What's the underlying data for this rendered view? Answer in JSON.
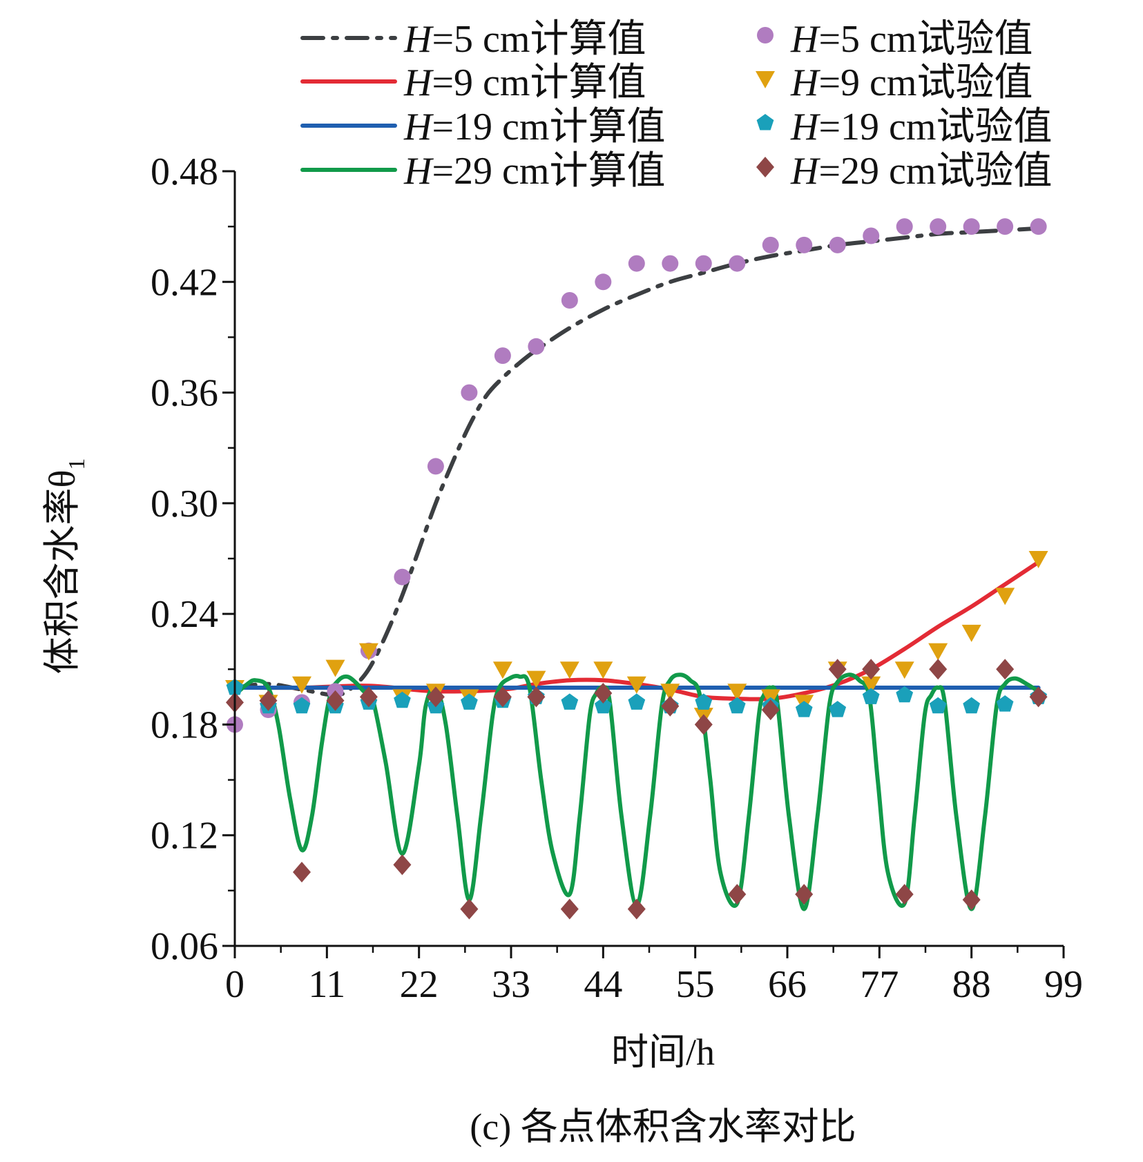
{
  "chart_data": {
    "type": "line",
    "caption": "(c) 各点体积含水率对比",
    "xlabel": "时间/h",
    "ylabel": "体积含水率θ",
    "ylabel_subscript": "1",
    "xlim": [
      0,
      99
    ],
    "ylim": [
      0.06,
      0.48
    ],
    "xticks": [
      0,
      11,
      22,
      33,
      44,
      55,
      66,
      77,
      88,
      99
    ],
    "yticks": [
      0.06,
      0.12,
      0.18,
      0.24,
      0.3,
      0.36,
      0.42,
      0.48
    ],
    "ytick_labels": [
      "0.06",
      "0.12",
      "0.18",
      "0.24",
      "0.30",
      "0.36",
      "0.42",
      "0.48"
    ],
    "legend_position": "top",
    "series": [
      {
        "name": "H=5 cm计算值",
        "kind": "line",
        "style": "dashdot",
        "color": "#3c3f42",
        "x": [
          0,
          4,
          8,
          12,
          14,
          16,
          18,
          20,
          22,
          24,
          26,
          28,
          30,
          32,
          34,
          36,
          40,
          44,
          48,
          52,
          56,
          60,
          64,
          68,
          72,
          76,
          80,
          84,
          88,
          92,
          96
        ],
        "y": [
          0.2,
          0.202,
          0.199,
          0.196,
          0.2,
          0.21,
          0.228,
          0.25,
          0.275,
          0.3,
          0.322,
          0.342,
          0.358,
          0.368,
          0.376,
          0.383,
          0.395,
          0.405,
          0.413,
          0.42,
          0.425,
          0.43,
          0.434,
          0.437,
          0.44,
          0.442,
          0.444,
          0.446,
          0.447,
          0.448,
          0.449
        ]
      },
      {
        "name": "H=9 cm计算值",
        "kind": "line",
        "style": "solid",
        "color": "#e32b35",
        "x": [
          0,
          8,
          16,
          24,
          32,
          36,
          40,
          44,
          48,
          52,
          56,
          60,
          64,
          68,
          72,
          76,
          80,
          84,
          88,
          92,
          96
        ],
        "y": [
          0.2,
          0.2,
          0.201,
          0.198,
          0.199,
          0.202,
          0.204,
          0.204,
          0.202,
          0.199,
          0.195,
          0.194,
          0.194,
          0.197,
          0.202,
          0.21,
          0.221,
          0.233,
          0.244,
          0.256,
          0.268
        ]
      },
      {
        "name": "H=19 cm计算值",
        "kind": "line",
        "style": "solid",
        "color": "#1f5fb0",
        "x": [
          0,
          96
        ],
        "y": [
          0.2,
          0.2
        ]
      },
      {
        "name": "H=29 cm计算值",
        "kind": "line",
        "style": "solid",
        "color": "#119a4a",
        "x": [
          0,
          1.5,
          2.5,
          4,
          5.2,
          6.6,
          8,
          9.2,
          10.4,
          11.4,
          12.4,
          13.4,
          14.4,
          15.4,
          16.4,
          18,
          20,
          22,
          22.8,
          24,
          25.2,
          26.6,
          28,
          29.4,
          30.8,
          31.6,
          32.8,
          34,
          35.2,
          36.6,
          38,
          40,
          41.2,
          42.4,
          43.2,
          44,
          44.8,
          46.2,
          48,
          49.6,
          51,
          52,
          53.2,
          54.4,
          55.6,
          56.8,
          58,
          60,
          61.4,
          62.6,
          63.2,
          64,
          64.8,
          66.2,
          68,
          69.6,
          71,
          72,
          73.4,
          74.6,
          75.8,
          76.8,
          78,
          80,
          81.2,
          82.4,
          83.2,
          84,
          84.8,
          86.2,
          88,
          89.6,
          91,
          92,
          93.2,
          94.6,
          96
        ],
        "y": [
          0.196,
          0.202,
          0.204,
          0.2,
          0.18,
          0.14,
          0.112,
          0.13,
          0.17,
          0.196,
          0.204,
          0.206,
          0.203,
          0.198,
          0.195,
          0.16,
          0.11,
          0.158,
          0.19,
          0.2,
          0.18,
          0.13,
          0.085,
          0.13,
          0.185,
          0.2,
          0.205,
          0.206,
          0.2,
          0.15,
          0.11,
          0.088,
          0.13,
          0.185,
          0.197,
          0.2,
          0.192,
          0.13,
          0.082,
          0.13,
          0.19,
          0.204,
          0.207,
          0.204,
          0.195,
          0.15,
          0.1,
          0.083,
          0.13,
          0.185,
          0.196,
          0.2,
          0.192,
          0.13,
          0.08,
          0.13,
          0.19,
          0.203,
          0.207,
          0.204,
          0.195,
          0.15,
          0.1,
          0.083,
          0.13,
          0.185,
          0.196,
          0.2,
          0.192,
          0.13,
          0.08,
          0.13,
          0.19,
          0.202,
          0.205,
          0.202,
          0.198
        ]
      },
      {
        "name": "H=5 cm试验值",
        "kind": "scatter",
        "marker": "circle",
        "color": "#b07cc0",
        "x": [
          0,
          4,
          8,
          12,
          16,
          20,
          24,
          28,
          32,
          36,
          40,
          44,
          48,
          52,
          56,
          60,
          64,
          68,
          72,
          76,
          80,
          84,
          88,
          92,
          96
        ],
        "y": [
          0.18,
          0.188,
          0.192,
          0.198,
          0.22,
          0.26,
          0.32,
          0.36,
          0.38,
          0.385,
          0.41,
          0.42,
          0.43,
          0.43,
          0.43,
          0.43,
          0.44,
          0.44,
          0.44,
          0.445,
          0.45,
          0.45,
          0.45,
          0.45,
          0.45
        ]
      },
      {
        "name": "H=9 cm试验值",
        "kind": "scatter",
        "marker": "triangle-down",
        "color": "#e0a110",
        "x": [
          0,
          4,
          8,
          12,
          16,
          20,
          24,
          28,
          32,
          36,
          40,
          44,
          48,
          52,
          56,
          60,
          64,
          68,
          72,
          76,
          80,
          84,
          88,
          92,
          96
        ],
        "y": [
          0.2,
          0.192,
          0.202,
          0.211,
          0.22,
          0.195,
          0.198,
          0.195,
          0.21,
          0.205,
          0.21,
          0.21,
          0.202,
          0.198,
          0.185,
          0.198,
          0.195,
          0.192,
          0.21,
          0.202,
          0.21,
          0.22,
          0.23,
          0.25,
          0.27
        ]
      },
      {
        "name": "H=19 cm试验值",
        "kind": "scatter",
        "marker": "pentagon",
        "color": "#1aa0ba",
        "x": [
          0,
          4,
          8,
          12,
          16,
          20,
          24,
          28,
          32,
          36,
          40,
          44,
          48,
          52,
          56,
          60,
          64,
          68,
          72,
          76,
          80,
          84,
          88,
          92,
          96
        ],
        "y": [
          0.2,
          0.19,
          0.19,
          0.19,
          0.192,
          0.193,
          0.19,
          0.192,
          0.193,
          0.195,
          0.192,
          0.19,
          0.192,
          0.19,
          0.192,
          0.19,
          0.19,
          0.188,
          0.188,
          0.195,
          0.196,
          0.19,
          0.19,
          0.191,
          0.195
        ]
      },
      {
        "name": "H=29 cm试验值",
        "kind": "scatter",
        "marker": "diamond",
        "color": "#8e4646",
        "x": [
          0,
          4,
          8,
          12,
          16,
          20,
          24,
          28,
          32,
          36,
          40,
          44,
          48,
          52,
          56,
          60,
          64,
          68,
          72,
          76,
          80,
          84,
          88,
          92,
          96
        ],
        "y": [
          0.192,
          0.193,
          0.1,
          0.193,
          0.195,
          0.104,
          0.195,
          0.08,
          0.195,
          0.195,
          0.08,
          0.197,
          0.08,
          0.19,
          0.18,
          0.088,
          0.188,
          0.088,
          0.21,
          0.21,
          0.088,
          0.21,
          0.085,
          0.21,
          0.195
        ]
      }
    ]
  }
}
